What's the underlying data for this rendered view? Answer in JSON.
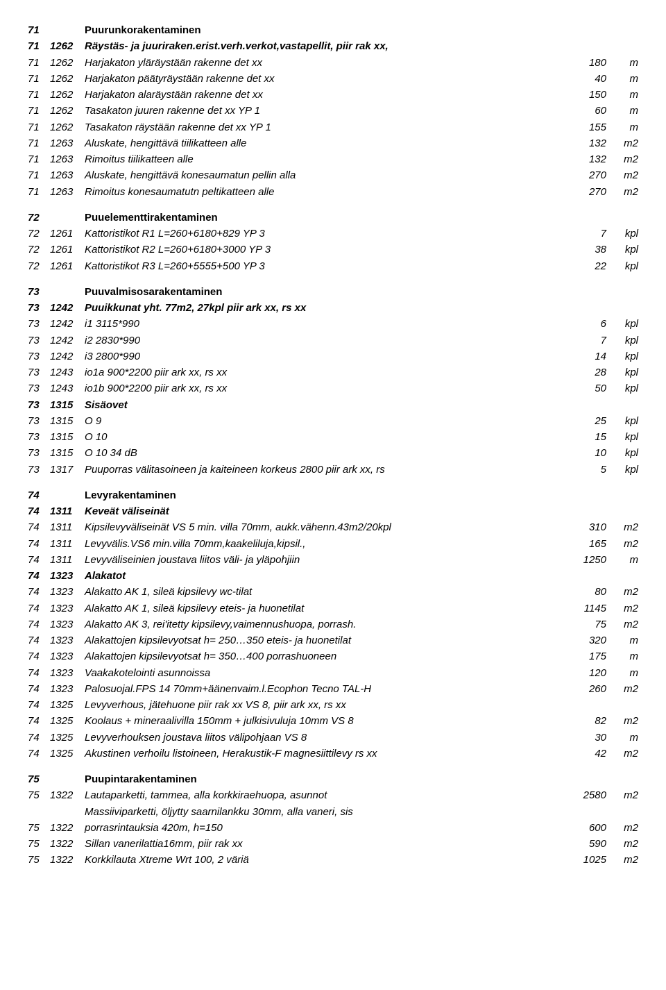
{
  "rows": [
    {
      "b": "71",
      "c": "",
      "d": "Puurunkorakentaminen",
      "style": "heading"
    },
    {
      "b": "71",
      "c": "1262",
      "d": "Räystäs- ja juuriraken.erist.verh.verkot,vastapellit, piir rak xx,",
      "style": "headingital"
    },
    {
      "b": "71",
      "c": "1262",
      "d": "Harjakaton yläräystään rakenne  det  xx",
      "v": "180",
      "u": "m",
      "style": "ital"
    },
    {
      "b": "71",
      "c": "1262",
      "d": "Harjakaton päätyräystään rakenne  det  xx",
      "v": "40",
      "u": "m",
      "style": "ital"
    },
    {
      "b": "71",
      "c": "1262",
      "d": "Harjakaton alaräystään rakenne  det  xx",
      "v": "150",
      "u": "m",
      "style": "ital"
    },
    {
      "b": "71",
      "c": "1262",
      "d": "Tasakaton juuren rakenne  det  xx  YP 1",
      "v": "60",
      "u": "m",
      "style": "ital"
    },
    {
      "b": "71",
      "c": "1262",
      "d": "Tasakaton räystään rakenne  det  xx  YP 1",
      "v": "155",
      "u": "m",
      "style": "ital"
    },
    {
      "b": "71",
      "c": "1263",
      "d": "Aluskate, hengittävä tiilikatteen alle",
      "v": "132",
      "u": "m2",
      "style": "ital"
    },
    {
      "b": "71",
      "c": "1263",
      "d": "Rimoitus tiilikatteen alle",
      "v": "132",
      "u": "m2",
      "style": "ital"
    },
    {
      "b": "71",
      "c": "1263",
      "d": "Aluskate, hengittävä  konesaumatun pellin alla",
      "v": "270",
      "u": "m2",
      "style": "ital"
    },
    {
      "b": "71",
      "c": "1263",
      "d": "Rimoitus konesaumatutn peltikatteen alle",
      "v": "270",
      "u": "m2",
      "style": "ital"
    },
    {
      "gap": true
    },
    {
      "b": "72",
      "c": "",
      "d": "Puuelementtirakentaminen",
      "style": "heading"
    },
    {
      "b": "72",
      "c": "1261",
      "d": "Kattoristikot  R1  L=260+6180+829  YP 3",
      "v": "7",
      "u": "kpl",
      "style": "ital"
    },
    {
      "b": "72",
      "c": "1261",
      "d": "Kattoristikot  R2  L=260+6180+3000  YP 3",
      "v": "38",
      "u": "kpl",
      "style": "ital"
    },
    {
      "b": "72",
      "c": "1261",
      "d": "Kattoristikot  R3  L=260+5555+500  YP 3",
      "v": "22",
      "u": "kpl",
      "style": "ital"
    },
    {
      "gap": true
    },
    {
      "b": "73",
      "c": "",
      "d": "Puuvalmisosarakentaminen",
      "style": "heading"
    },
    {
      "b": "73",
      "c": "1242",
      "d": "Puuikkunat  yht.  77m2, 27kpl  piir ark xx, rs xx",
      "style": "headingital"
    },
    {
      "b": "73",
      "c": "1242",
      "d": "i1  3115*990",
      "v": "6",
      "u": "kpl",
      "style": "ital"
    },
    {
      "b": "73",
      "c": "1242",
      "d": "i2  2830*990",
      "v": "7",
      "u": "kpl",
      "style": "ital"
    },
    {
      "b": "73",
      "c": "1242",
      "d": "i3  2800*990",
      "v": "14",
      "u": "kpl",
      "style": "ital"
    },
    {
      "b": "73",
      "c": "1243",
      "d": "io1a  900*2200 piir ark xx, rs xx",
      "v": "28",
      "u": "kpl",
      "style": "ital"
    },
    {
      "b": "73",
      "c": "1243",
      "d": "io1b  900*2200 piir ark xx, rs xx",
      "v": "50",
      "u": "kpl",
      "style": "ital"
    },
    {
      "b": "73",
      "c": "1315",
      "d": "Sisäovet",
      "style": "headingital"
    },
    {
      "b": "73",
      "c": "1315",
      "d": "O 9",
      "v": "25",
      "u": "kpl",
      "style": "ital"
    },
    {
      "b": "73",
      "c": "1315",
      "d": "O 10",
      "v": "15",
      "u": "kpl",
      "style": "ital"
    },
    {
      "b": "73",
      "c": "1315",
      "d": "O 10  34 dB",
      "v": "10",
      "u": "kpl",
      "style": "ital"
    },
    {
      "b": "73",
      "c": "1317",
      "d": "Puuporras välitasoineen ja kaiteineen korkeus 2800 piir ark xx, rs",
      "v": "5",
      "u": "kpl",
      "style": "ital"
    },
    {
      "gap": true
    },
    {
      "b": "74",
      "c": "",
      "d": "Levyrakentaminen",
      "style": "heading"
    },
    {
      "b": "74",
      "c": "1311",
      "d": "Keveät väliseinät",
      "style": "headingital"
    },
    {
      "b": "74",
      "c": "1311",
      "d": "Kipsilevyväliseinät  VS 5 min. villa 70mm, aukk.vähenn.43m2/20kpl",
      "v": "310",
      "u": "m2",
      "style": "ital"
    },
    {
      "b": "74",
      "c": "1311",
      "d": "Levyvälis.VS6 min.villa 70mm,kaakeliluja,kipsil.,",
      "v": "165",
      "u": "m2",
      "style": "ital"
    },
    {
      "b": "74",
      "c": "1311",
      "d": "Levyväliseinien joustava liitos väli- ja yläpohjiin",
      "v": "1250",
      "u": "m",
      "style": "ital"
    },
    {
      "b": "74",
      "c": "1323",
      "d": "Alakatot",
      "style": "headingital"
    },
    {
      "b": "74",
      "c": "1323",
      "d": "Alakatto AK 1, sileä kipsilevy  wc-tilat",
      "v": "80",
      "u": "m2",
      "style": "ital"
    },
    {
      "b": "74",
      "c": "1323",
      "d": "Alakatto AK 1, sileä kipsilevy  eteis- ja huonetilat",
      "v": "1145",
      "u": "m2",
      "style": "ital"
    },
    {
      "b": "74",
      "c": "1323",
      "d": "Alakatto AK 3, rei'itetty kipsilevy,vaimennushuopa,  porrash.",
      "v": "75",
      "u": "m2",
      "style": "ital"
    },
    {
      "b": "74",
      "c": "1323",
      "d": "Alakattojen kipsilevyotsat h= 250…350 eteis- ja huonetilat",
      "v": "320",
      "u": "m",
      "style": "ital"
    },
    {
      "b": "74",
      "c": "1323",
      "d": "Alakattojen kipsilevyotsat h= 350…400 porrashuoneen",
      "v": "175",
      "u": "m",
      "style": "ital"
    },
    {
      "b": "74",
      "c": "1323",
      "d": "Vaakakotelointi asunnoissa",
      "v": "120",
      "u": "m",
      "style": "ital"
    },
    {
      "b": "74",
      "c": "1323",
      "d": "Palosuojal.FPS 14 70mm+äänenvaim.l.Ecophon Tecno TAL-H",
      "v": "260",
      "u": "m2",
      "style": "ital"
    },
    {
      "b": "74",
      "c": "1325",
      "d": "Levyverhous, jätehuone  piir rak xx  VS 8,  piir ark xx, rs xx",
      "style": "ital"
    },
    {
      "b": "74",
      "c": "1325",
      "d": "Koolaus + mineraalivilla 150mm + julkisivuluja 10mm  VS 8",
      "v": "82",
      "u": "m2",
      "style": "ital"
    },
    {
      "b": "74",
      "c": "1325",
      "d": "Levyverhouksen joustava liitos välipohjaan  VS 8",
      "v": "30",
      "u": "m",
      "style": "ital"
    },
    {
      "b": "74",
      "c": "1325",
      "d": "Akustinen verhoilu listoineen, Herakustik-F magnesiittilevy rs xx",
      "v": "42",
      "u": "m2",
      "style": "ital"
    },
    {
      "gap": true
    },
    {
      "b": "75",
      "c": "",
      "d": "Puupintarakentaminen",
      "style": "heading"
    },
    {
      "b": "75",
      "c": "1322",
      "d": "Lautaparketti, tammea, alla korkkiraehuopa, asunnot",
      "v": "2580",
      "u": "m2",
      "style": "ital"
    },
    {
      "b": "",
      "c": "",
      "d": "Massiiviparketti,  öljytty  saarnilankku  30mm,  alla  vaneri,  sis",
      "style": "ital"
    },
    {
      "b": "75",
      "c": "1322",
      "d": "porrasrintauksia 420m, h=150",
      "v": "600",
      "u": "m2",
      "style": "ital"
    },
    {
      "b": "75",
      "c": "1322",
      "d": "Sillan vanerilattia16mm, piir rak xx",
      "v": "590",
      "u": "m2",
      "style": "ital"
    },
    {
      "b": "75",
      "c": "1322",
      "d": "Korkkilauta Xtreme Wrt 100, 2 väriä",
      "v": "1025",
      "u": "m2",
      "style": "ital"
    }
  ]
}
